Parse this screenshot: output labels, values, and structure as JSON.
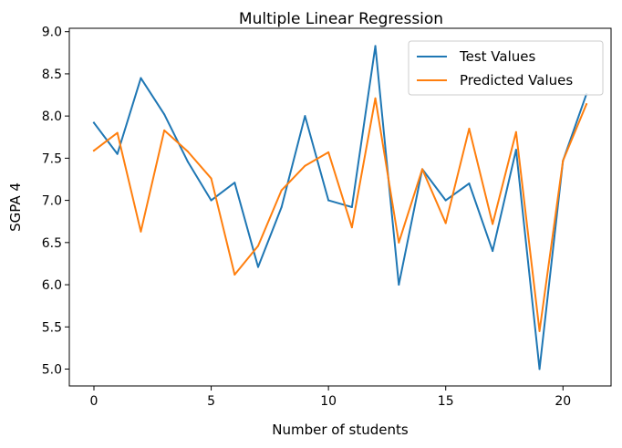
{
  "chart_data": {
    "type": "line",
    "title": "Multiple Linear Regression",
    "xlabel": "Number of students",
    "ylabel": "SGPA 4",
    "xlim": [
      -1.05,
      22.05
    ],
    "ylim": [
      4.8,
      9.04
    ],
    "xticks": [
      0,
      5,
      10,
      15,
      20
    ],
    "xtick_labels": [
      "0",
      "5",
      "10",
      "15",
      "20"
    ],
    "yticks": [
      5.0,
      5.5,
      6.0,
      6.5,
      7.0,
      7.5,
      8.0,
      8.5,
      9.0
    ],
    "ytick_labels": [
      "5.0",
      "5.5",
      "6.0",
      "6.5",
      "7.0",
      "7.5",
      "8.0",
      "8.5",
      "9.0"
    ],
    "grid": false,
    "legend": "top-right",
    "x": [
      0,
      1,
      2,
      3,
      4,
      5,
      6,
      7,
      8,
      9,
      10,
      11,
      12,
      13,
      14,
      15,
      16,
      17,
      18,
      19,
      20,
      21
    ],
    "series": [
      {
        "name": "Test Values",
        "color": "#1f77b4",
        "values": [
          7.92,
          7.55,
          8.45,
          8.02,
          7.46,
          7.0,
          7.21,
          6.21,
          6.92,
          8.0,
          7.0,
          6.92,
          8.83,
          6.0,
          7.37,
          7.0,
          7.2,
          6.4,
          7.6,
          5.0,
          7.47,
          8.26
        ]
      },
      {
        "name": "Predicted Values",
        "color": "#ff7f0e",
        "values": [
          7.59,
          7.8,
          6.63,
          7.83,
          7.58,
          7.26,
          6.12,
          6.46,
          7.12,
          7.41,
          7.57,
          6.68,
          8.21,
          6.5,
          7.37,
          6.73,
          7.85,
          6.72,
          7.81,
          5.45,
          7.47,
          8.14
        ]
      }
    ]
  }
}
